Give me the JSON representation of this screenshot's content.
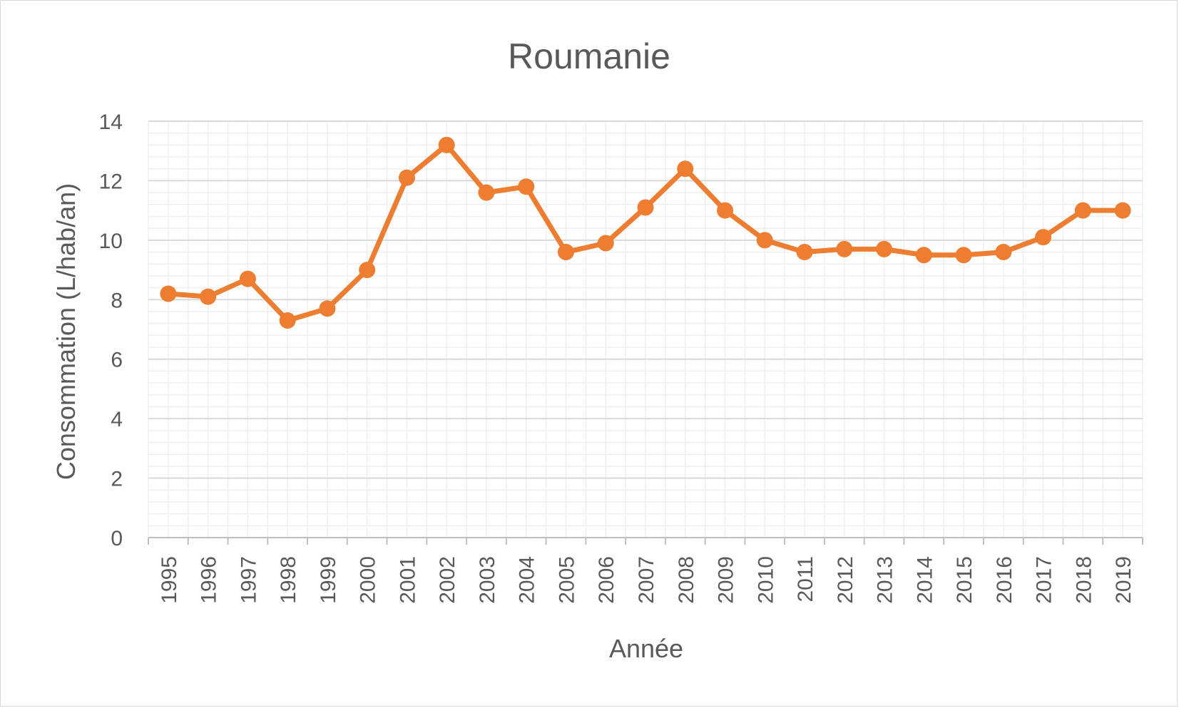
{
  "chart_data": {
    "type": "line",
    "title": "Roumanie",
    "xlabel": "Année",
    "ylabel": "Consommation (L/hab/an)",
    "categories": [
      "1995",
      "1996",
      "1997",
      "1998",
      "1999",
      "2000",
      "2001",
      "2002",
      "2003",
      "2004",
      "2005",
      "2006",
      "2007",
      "2008",
      "2009",
      "2010",
      "2011",
      "2012",
      "2013",
      "2014",
      "2015",
      "2016",
      "2017",
      "2018",
      "2019"
    ],
    "series": [
      {
        "values": [
          8.2,
          8.1,
          8.7,
          7.3,
          7.7,
          9.0,
          12.1,
          13.2,
          11.6,
          11.8,
          9.6,
          9.9,
          11.1,
          12.4,
          11.0,
          10.0,
          9.6,
          9.7,
          9.7,
          9.5,
          9.5,
          9.6,
          10.1,
          11.0,
          11.0
        ],
        "color": "#ED7D31"
      }
    ],
    "ylim": [
      0,
      14
    ],
    "yticks": [
      0,
      2,
      4,
      6,
      8,
      10,
      12,
      14
    ],
    "grid": true,
    "legend": "none"
  }
}
